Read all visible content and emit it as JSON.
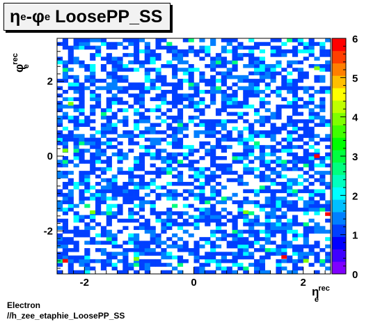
{
  "title": {
    "base": "LoosePP_SS",
    "eta": "η",
    "phi": "φ",
    "sub": "e",
    "dash": "-"
  },
  "xlabel": {
    "symbol": "η",
    "sup": "rec",
    "sub": "e"
  },
  "ylabel": {
    "symbol": "φ",
    "sup": "rec",
    "sub": "e"
  },
  "footer": {
    "line1": "Electron",
    "line2": "//h_zee_etaphie_LoosePP_SS"
  },
  "chart_data": {
    "type": "heatmap",
    "title": "ηe-φe LoosePP_SS",
    "xlabel": "η_e^rec",
    "ylabel": "φ_e^rec",
    "xlim": [
      -2.5,
      2.5
    ],
    "ylim": [
      -3.15,
      3.15
    ],
    "zlim": [
      0,
      6
    ],
    "nx": 50,
    "ny": 64,
    "x_ticks": [
      -2,
      0,
      2
    ],
    "y_ticks": [
      -2,
      0,
      2
    ],
    "z_ticks": [
      0,
      1,
      2,
      3,
      4,
      5,
      6
    ],
    "palette": [
      "#7f00ff",
      "#3f00ff",
      "#0000ff",
      "#003fff",
      "#007fff",
      "#00bfff",
      "#00ffff",
      "#00ffbf",
      "#00ff7f",
      "#00ff3f",
      "#00ff00",
      "#3fff00",
      "#7fff00",
      "#bfff00",
      "#ffff00",
      "#ffbf00",
      "#ff7f00",
      "#ff3f00",
      "#ff0000"
    ],
    "highlighted_cells": [
      {
        "x": -2.35,
        "y": -2.8,
        "value": 6
      },
      {
        "x": 1.65,
        "y": -2.7,
        "value": 6
      },
      {
        "x": 2.45,
        "y": -1.55,
        "value": 6
      },
      {
        "x": 2.25,
        "y": 0.0,
        "value": 6
      },
      {
        "x": -2.25,
        "y": 1.4,
        "value": 4
      },
      {
        "x": -1.85,
        "y": -1.5,
        "value": 4
      },
      {
        "x": -2.35,
        "y": 0.15,
        "value": 4
      },
      {
        "x": -1.05,
        "y": -2.75,
        "value": 4
      },
      {
        "x": 2.05,
        "y": -2.8,
        "value": 4
      },
      {
        "x": 0.95,
        "y": -1.5,
        "value": 4
      },
      {
        "x": 2.25,
        "y": 2.35,
        "value": 4
      }
    ],
    "grid": false
  }
}
